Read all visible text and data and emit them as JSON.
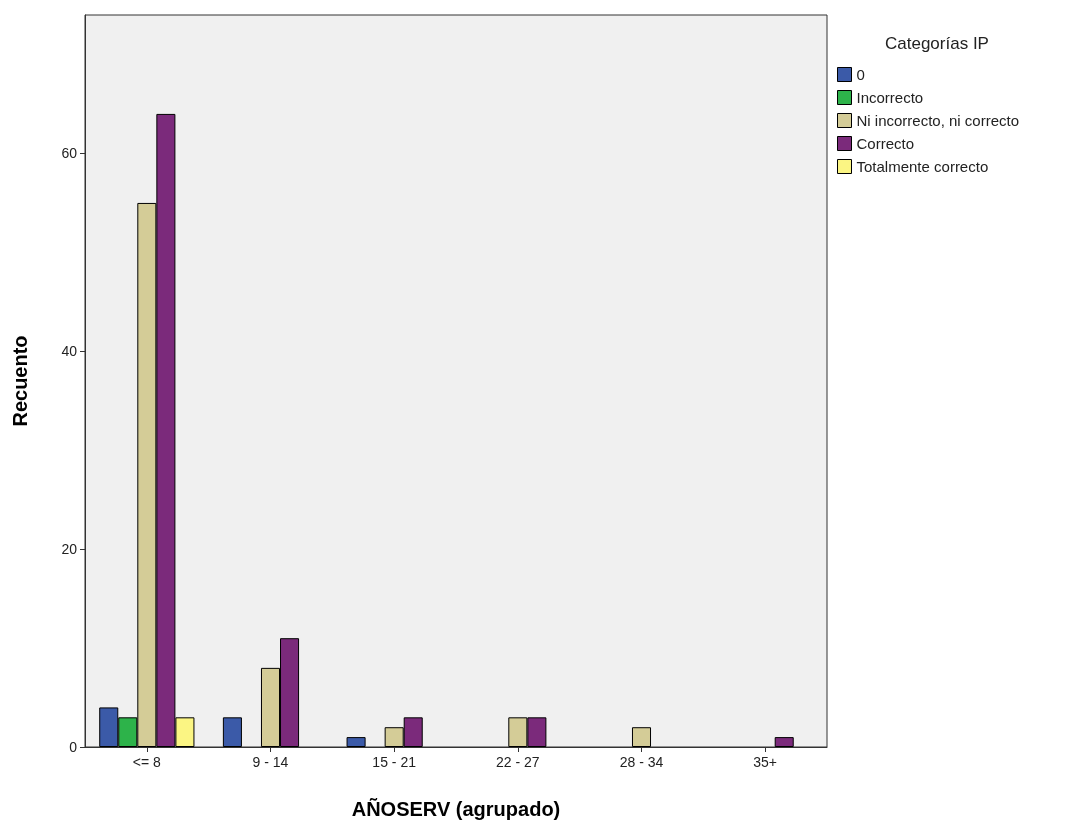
{
  "chart_data": {
    "type": "bar",
    "xlabel": "AÑOSERV (agrupado)",
    "ylabel": "Recuento",
    "legend_title": "Categorías IP",
    "categories": [
      "<= 8",
      "9 - 14",
      "15 - 21",
      "22 - 27",
      "28 - 34",
      "35+"
    ],
    "series": [
      {
        "name": "0",
        "color": "#3b5aa8",
        "values": [
          4,
          3,
          1,
          null,
          null,
          null
        ]
      },
      {
        "name": "Incorrecto",
        "color": "#2db34a",
        "values": [
          3,
          null,
          null,
          null,
          null,
          null
        ]
      },
      {
        "name": "Ni incorrecto, ni correcto",
        "color": "#d4cc97",
        "values": [
          55,
          8,
          2,
          3,
          2,
          null
        ]
      },
      {
        "name": "Correcto",
        "color": "#7b2a7b",
        "values": [
          64,
          11,
          3,
          3,
          null,
          1
        ]
      },
      {
        "name": "Totalmente correcto",
        "color": "#fbf583",
        "values": [
          3,
          null,
          null,
          null,
          null,
          null
        ]
      }
    ],
    "ylim": [
      0,
      74
    ],
    "yticks": [
      0,
      20,
      40,
      60
    ],
    "grid": false,
    "legend": "right"
  }
}
